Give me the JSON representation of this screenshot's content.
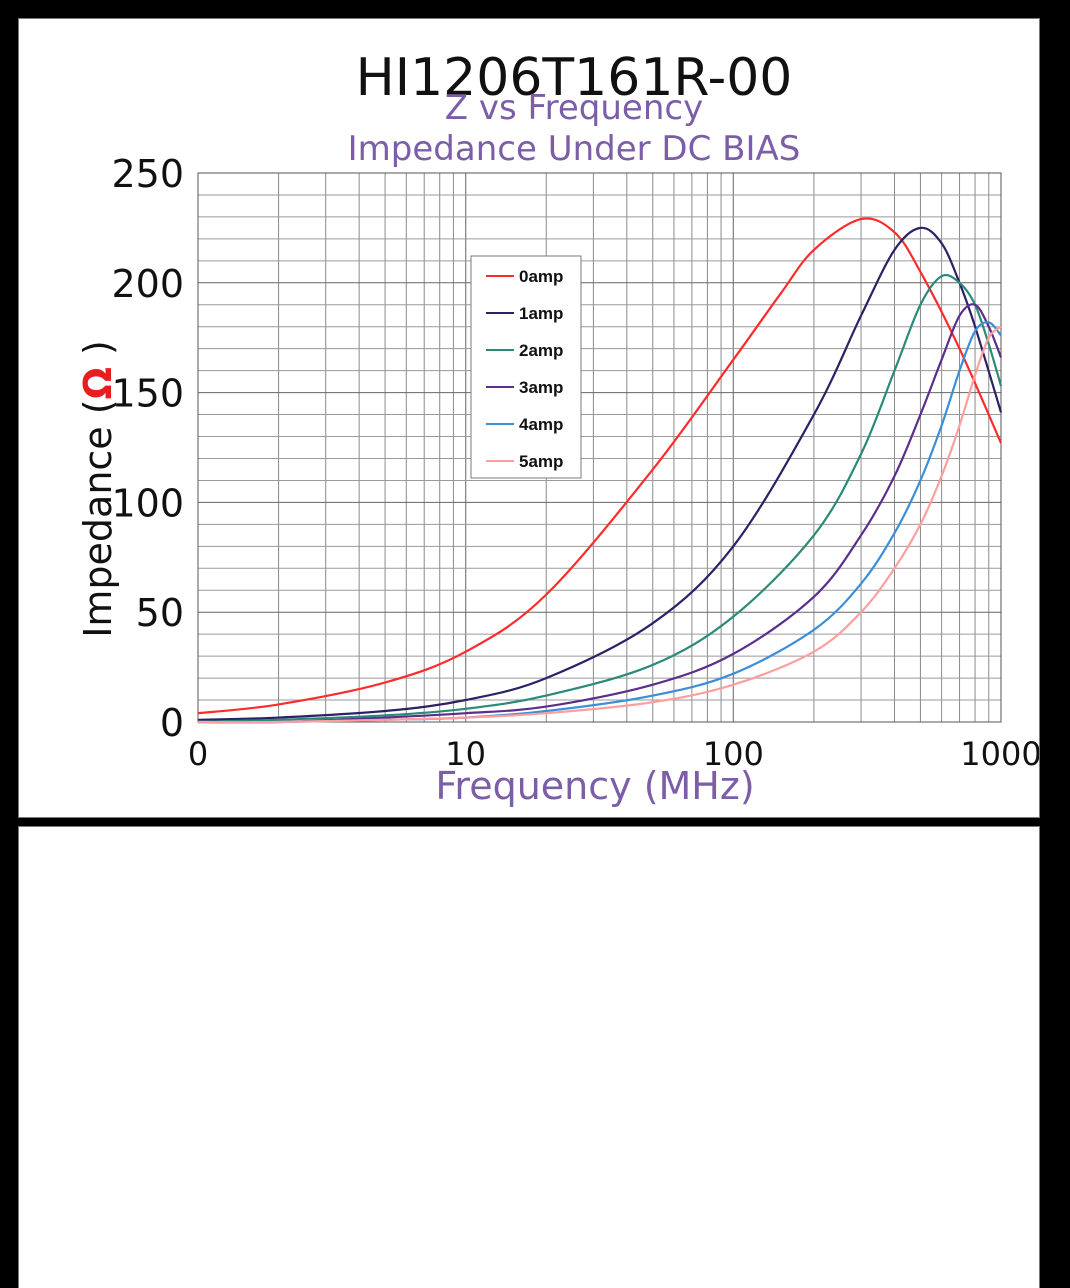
{
  "chart_data": {
    "type": "line",
    "title": "HI1206T161R-00",
    "subtitle_lines": [
      "Z vs Frequency",
      "Impedance Under DC BIAS"
    ],
    "xlabel": "Frequency (MHz)",
    "ylabel_prefix": "Impedance (",
    "ylabel_unit": "Ω",
    "ylabel_suffix": " )",
    "x_scale": "log",
    "xlim": [
      1,
      1000
    ],
    "x_tick_labels": [
      "0",
      "10",
      "100",
      "1000"
    ],
    "ylim": [
      0,
      250
    ],
    "y_tick_values": [
      0,
      50,
      100,
      150,
      200,
      250
    ],
    "grid": true,
    "legend_position": "inside upper-middle",
    "series": [
      {
        "name": "0amp",
        "color": "#ff2a2a",
        "x": [
          1,
          2,
          5,
          10,
          20,
          50,
          100,
          150,
          200,
          300,
          400,
          500,
          700,
          1000
        ],
        "y": [
          4,
          8,
          18,
          32,
          58,
          115,
          165,
          195,
          215,
          229,
          223,
          205,
          170,
          127
        ]
      },
      {
        "name": "1amp",
        "color": "#2b2266",
        "x": [
          1,
          2,
          5,
          10,
          20,
          50,
          100,
          200,
          300,
          400,
          500,
          600,
          700,
          800,
          1000
        ],
        "y": [
          1,
          2,
          5,
          10,
          20,
          45,
          80,
          140,
          185,
          215,
          225,
          218,
          200,
          180,
          141
        ]
      },
      {
        "name": "2amp",
        "color": "#2a8a78",
        "x": [
          1,
          2,
          5,
          10,
          20,
          50,
          100,
          200,
          300,
          400,
          500,
          600,
          700,
          800,
          900,
          1000
        ],
        "y": [
          0,
          1,
          3,
          6,
          12,
          26,
          48,
          85,
          122,
          160,
          190,
          203,
          200,
          190,
          172,
          153
        ]
      },
      {
        "name": "3amp",
        "color": "#5a2e8a",
        "x": [
          1,
          2,
          5,
          10,
          20,
          50,
          100,
          200,
          300,
          400,
          500,
          600,
          700,
          800,
          900,
          1000
        ],
        "y": [
          0,
          0,
          2,
          4,
          7,
          17,
          31,
          57,
          85,
          112,
          140,
          165,
          185,
          190,
          180,
          166
        ]
      },
      {
        "name": "4amp",
        "color": "#3b8fd8",
        "x": [
          1,
          2,
          5,
          10,
          20,
          50,
          100,
          200,
          300,
          400,
          500,
          600,
          700,
          800,
          900,
          1000
        ],
        "y": [
          0,
          0,
          1,
          2,
          5,
          12,
          22,
          42,
          63,
          86,
          110,
          135,
          160,
          178,
          182,
          176
        ]
      },
      {
        "name": "5amp",
        "color": "#ff9e9e",
        "x": [
          1,
          2,
          5,
          10,
          20,
          50,
          100,
          200,
          300,
          400,
          500,
          600,
          700,
          800,
          900,
          1000
        ],
        "y": [
          0,
          0,
          1,
          2,
          4,
          9,
          17,
          32,
          50,
          70,
          90,
          112,
          135,
          158,
          175,
          180
        ]
      }
    ]
  }
}
